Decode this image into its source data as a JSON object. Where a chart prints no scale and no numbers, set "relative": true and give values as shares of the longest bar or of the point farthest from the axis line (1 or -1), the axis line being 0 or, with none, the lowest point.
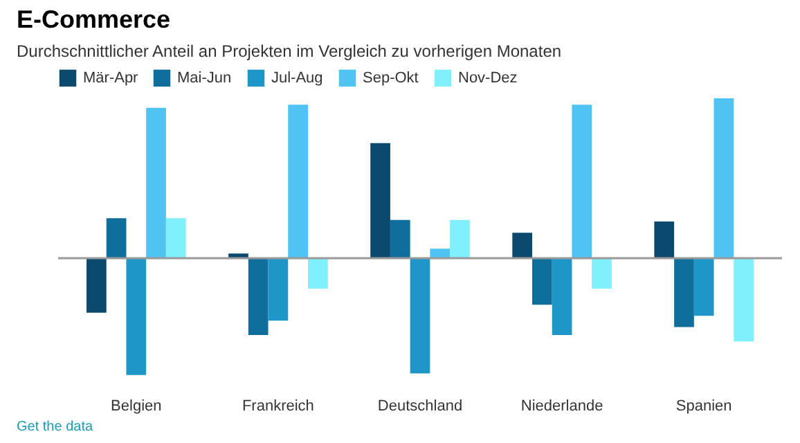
{
  "chart_data": {
    "type": "bar",
    "title": "E-Commerce",
    "subtitle": "Durchschnittlicher Anteil an Projekten im Vergleich zu vorherigen Monaten",
    "categories": [
      "Belgien",
      "Frankreich",
      "Deutschland",
      "Niederlande",
      "Spanien"
    ],
    "relative": true,
    "legend": "top",
    "grid": false,
    "series": [
      {
        "name": "Mär-Apr",
        "color": "#0b4a6e",
        "values": [
          -0.34,
          0.03,
          0.72,
          0.16,
          0.23
        ]
      },
      {
        "name": "Mai-Jun",
        "color": "#0f6e9b",
        "values": [
          0.25,
          -0.48,
          0.24,
          -0.29,
          -0.43
        ]
      },
      {
        "name": "Jul-Aug",
        "color": "#1e97c8",
        "values": [
          -0.73,
          -0.39,
          -0.72,
          -0.48,
          -0.36
        ]
      },
      {
        "name": "Sep-Okt",
        "color": "#4fc3f2",
        "values": [
          0.94,
          0.96,
          0.06,
          0.96,
          1
        ]
      },
      {
        "name": "Nov-Dez",
        "color": "#7ff0fc",
        "values": [
          0.25,
          -0.19,
          0.24,
          -0.19,
          -0.52
        ]
      }
    ],
    "annotations": [
      "Get the data"
    ]
  }
}
